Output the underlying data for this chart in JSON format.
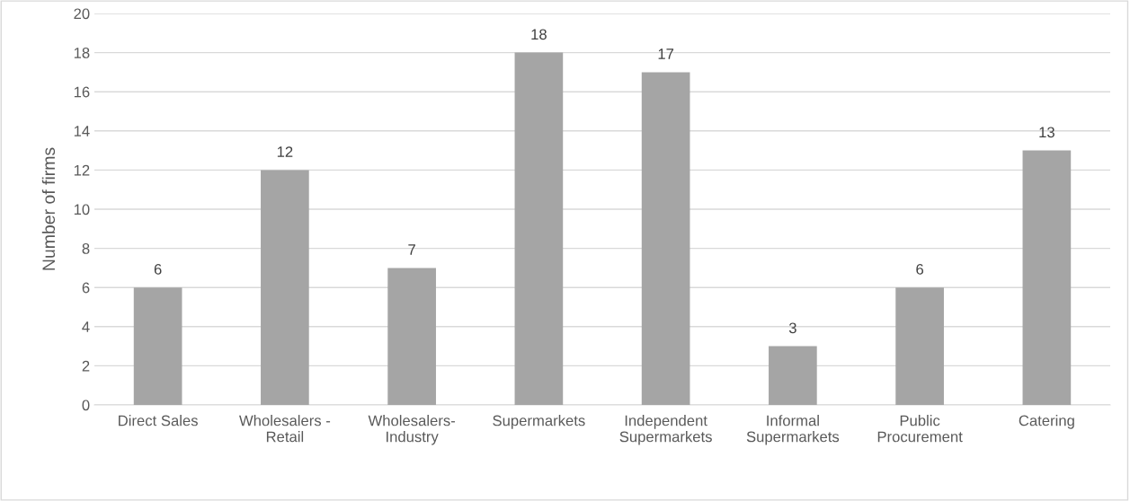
{
  "chart_data": {
    "type": "bar",
    "ylabel": "Number of firms",
    "categories": [
      "Direct Sales",
      "Wholesalers -\nRetail",
      "Wholesalers-\nIndustry",
      "Supermarkets",
      "Independent\nSupermarkets",
      "Informal\nSupermarkets",
      "Public\nProcurement",
      "Catering"
    ],
    "values": [
      6,
      12,
      7,
      18,
      17,
      3,
      6,
      13
    ],
    "color": "#a5a5a5",
    "ylim": [
      0,
      20
    ],
    "yticks": [
      0,
      2,
      4,
      6,
      8,
      10,
      12,
      14,
      16,
      18,
      20
    ],
    "grid": "y",
    "data_labels": true
  }
}
